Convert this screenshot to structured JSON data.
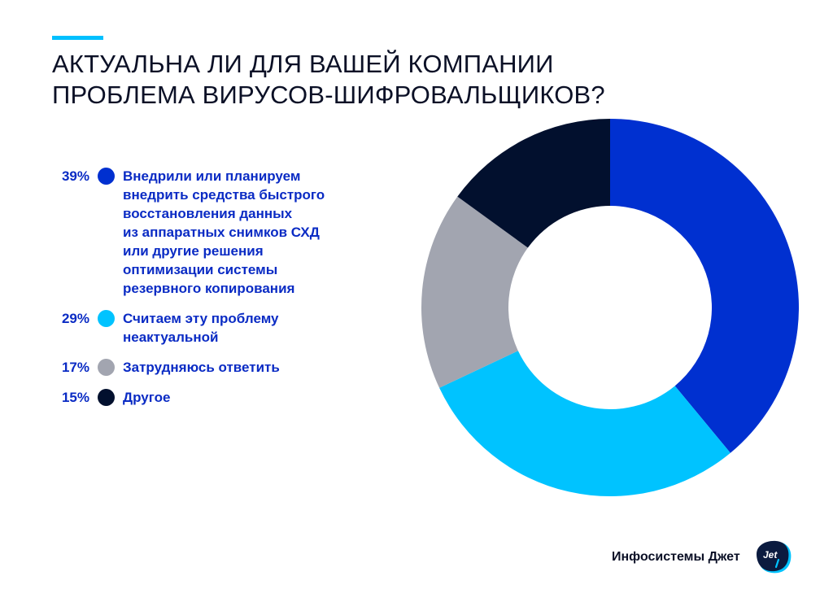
{
  "header": {
    "title_lines": [
      "АКТУАЛЬНА ЛИ ДЛЯ ВАШЕЙ КОМПАНИИ",
      "ПРОБЛЕМА ВИРУСОВ-ШИФРОВАЛЬЩИКОВ?"
    ],
    "accent_color": "#00c0ff"
  },
  "legend": [
    {
      "pct": "39%",
      "color": "#0030d0",
      "lines": [
        "Внедрили или планируем",
        "внедрить средства быстрого",
        "восстановления данных",
        "из аппаратных снимков СХД",
        "или другие решения",
        "оптимизации системы",
        "резервного копирования"
      ]
    },
    {
      "pct": "29%",
      "color": "#00c3ff",
      "lines": [
        "Считаем эту проблему",
        "неактуальной"
      ]
    },
    {
      "pct": "17%",
      "color": "#a2a5b0",
      "lines": [
        "Затрудняюсь ответить"
      ]
    },
    {
      "pct": "15%",
      "color": "#02102e",
      "lines": [
        "Другое"
      ]
    }
  ],
  "brand": {
    "name": "Инфосистемы Джет",
    "logo_text": "Jet"
  },
  "chart_data": {
    "type": "pie",
    "subtype": "donut",
    "title": "АКТУАЛЬНА ЛИ ДЛЯ ВАШЕЙ КОМПАНИИ ПРОБЛЕМА ВИРУСОВ-ШИФРОВАЛЬЩИКОВ?",
    "categories": [
      "Внедрили или планируем внедрить средства быстрого восстановления данных из аппаратных снимков СХД или другие решения оптимизации системы резервного копирования",
      "Считаем эту проблему неактуальной",
      "Затрудняюсь ответить",
      "Другое"
    ],
    "values": [
      39,
      29,
      17,
      15
    ],
    "colors": [
      "#0030d0",
      "#00c3ff",
      "#a2a5b0",
      "#02102e"
    ],
    "unit": "%",
    "start_angle": "12 o'clock, clockwise",
    "legend_position": "left"
  }
}
